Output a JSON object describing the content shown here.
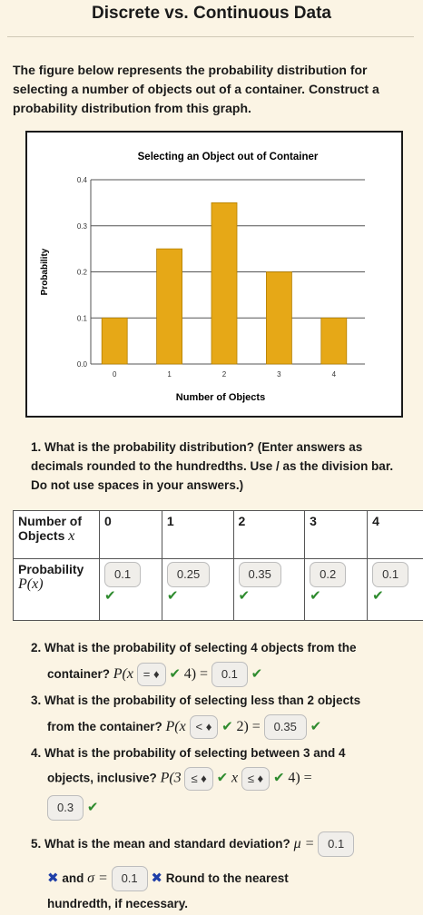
{
  "page": {
    "title": "Discrete vs. Continuous Data"
  },
  "intro": "The figure below represents the probability distribution for selecting a number of objects out of a container. Construct a probability distribution from this graph.",
  "chart_data": {
    "type": "bar",
    "title": "Selecting an Object out of Container",
    "xlabel": "Number of Objects",
    "ylabel": "Probability",
    "categories": [
      "0",
      "1",
      "2",
      "3",
      "4"
    ],
    "values": [
      0.1,
      0.25,
      0.35,
      0.2,
      0.1
    ],
    "ylim": [
      0,
      0.4
    ],
    "yticks": [
      "0.0",
      "0.1",
      "0.2",
      "0.3",
      "0.4"
    ],
    "grid": true,
    "bar_color": "#e6a817"
  },
  "q1": {
    "text": "1. What is the probability distribution? (Enter answers as decimals rounded to the hundredths. Use / as the division bar. Do not use spaces in your answers.)",
    "row1_label_a": "Number of",
    "row1_label_b": "Objects",
    "row1_var": "x",
    "row2_label": "Probability",
    "row2_var": "P(x)",
    "objects": [
      "0",
      "1",
      "2",
      "3",
      "4"
    ],
    "answers": [
      "0.1",
      "0.25",
      "0.35",
      "0.2",
      "0.1"
    ],
    "check": "✔"
  },
  "q2": {
    "line1": "2. What is the probability of selecting 4 objects from the",
    "line2": "container?",
    "expr_a": "P(x",
    "select": "= ♦",
    "expr_b": "4) =",
    "answer": "0.1"
  },
  "q3": {
    "line1": "3. What is the probability of selecting less than 2 objects",
    "line2": "from the container?",
    "expr_a": "P(x",
    "select": "< ♦",
    "expr_b": "2) =",
    "answer": "0.35"
  },
  "q4": {
    "line1": "4. What is the probability of selecting between 3 and 4",
    "line2": "objects, inclusive?",
    "expr_a": "P(3",
    "select1": "≤ ♦",
    "expr_mid": "x",
    "select2": "≤ ♦",
    "expr_b": "4) =",
    "answer": "0.3"
  },
  "q5": {
    "line1": "5. What is the mean and standard deviation?",
    "mu": "μ =",
    "mu_answer": "0.1",
    "cross": "✖",
    "and": "and",
    "sigma": "σ =",
    "sigma_answer": "0.1",
    "round_a": "Round to the nearest",
    "round_b": "hundredth, if necessary."
  }
}
